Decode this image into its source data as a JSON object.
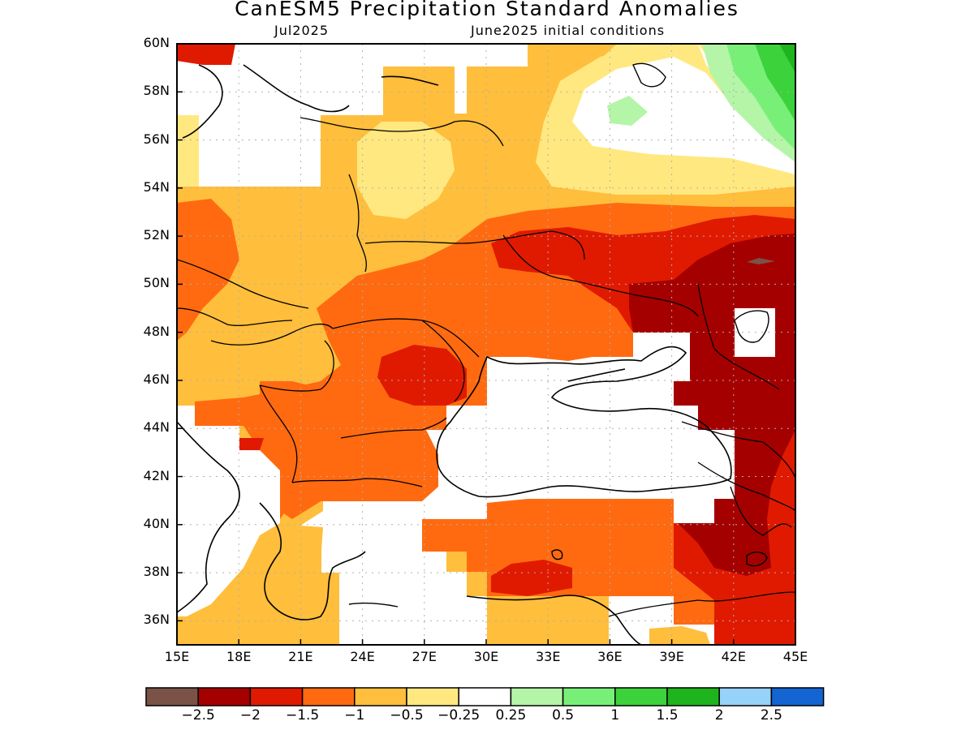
{
  "title": "CanESM5 Precipitation Standard Anomalies",
  "subtitle_left": "Jul2025",
  "subtitle_right": "June2025 initial conditions",
  "lat_labels": [
    "60N",
    "58N",
    "56N",
    "54N",
    "52N",
    "50N",
    "48N",
    "46N",
    "44N",
    "42N",
    "40N",
    "38N",
    "36N"
  ],
  "lon_labels": [
    "15E",
    "18E",
    "21E",
    "24E",
    "27E",
    "30E",
    "33E",
    "36E",
    "39E",
    "42E",
    "45E"
  ],
  "colorbar": {
    "colors": [
      "#7a5246",
      "#a50000",
      "#e01a00",
      "#ff6a10",
      "#ffbe3c",
      "#ffe880",
      "#ffffff",
      "#b4f5a8",
      "#78f078",
      "#3cd23c",
      "#1eb41e",
      "#96d2fa",
      "#1464d2"
    ],
    "labels": [
      "−2.5",
      "−2",
      "−1.5",
      "−1",
      "−0.5",
      "−0.25",
      "0.25",
      "0.5",
      "1",
      "1.5",
      "2",
      "2.5"
    ]
  },
  "colors": {
    "brown": "#7a5246",
    "darkred": "#a50000",
    "red": "#e01a00",
    "orange": "#ff6a10",
    "lightorange": "#ffbe3c",
    "yellow": "#ffe880",
    "white": "#ffffff",
    "palegreen": "#b4f5a8",
    "lightgreen": "#78f078",
    "green": "#3cd23c",
    "darkgreen": "#1eb41e"
  }
}
